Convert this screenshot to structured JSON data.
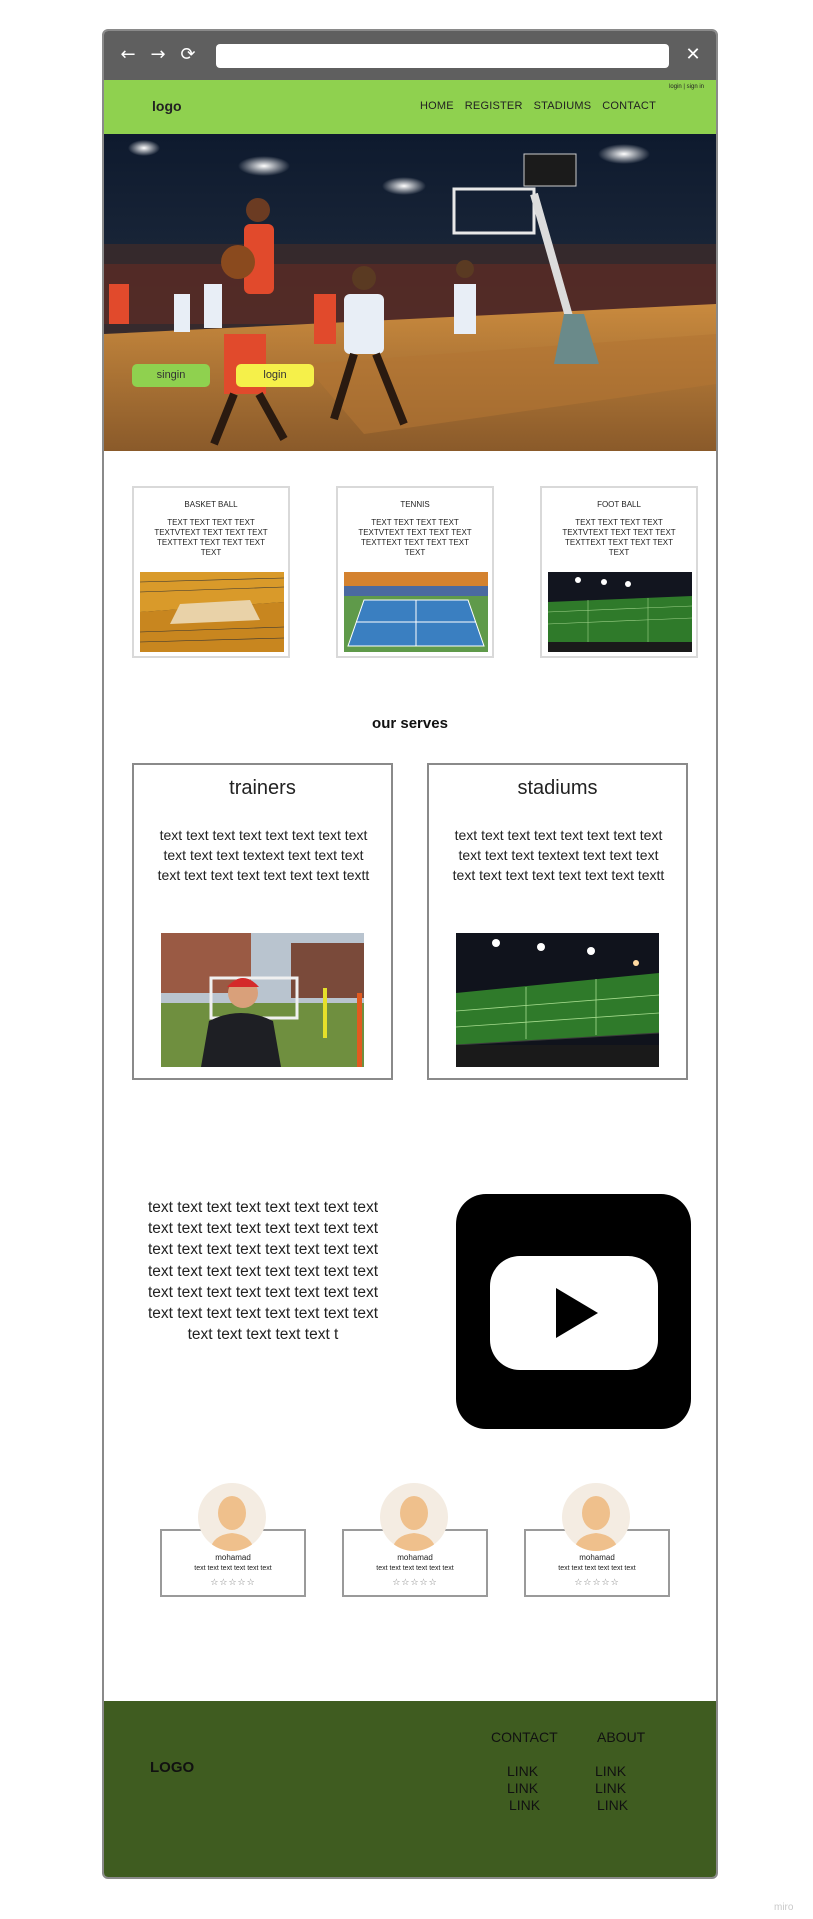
{
  "browser": {
    "back_icon": "arrow-left-icon",
    "forward_icon": "arrow-right-icon",
    "reload_icon": "reload-icon",
    "close_icon": "close-icon"
  },
  "header": {
    "logo": "logo",
    "auth_links": "login | sign in",
    "nav": [
      "HOME",
      "REGISTER",
      "STADIUMS",
      "CONTACT"
    ],
    "bg_color": "#8fd14f"
  },
  "hero": {
    "signup_label": "singin",
    "login_label": "login"
  },
  "sports": [
    {
      "title": "BASKET BALL",
      "text": "TEXT TEXT TEXT TEXT TEXTVTEXT TEXT TEXT TEXT TEXTTEXT TEXT TEXT TEXT TEXT"
    },
    {
      "title": "TENNIS",
      "text": "TEXT TEXT TEXT TEXT TEXTVTEXT TEXT TEXT TEXT TEXTTEXT TEXT TEXT TEXT TEXT"
    },
    {
      "title": "FOOT BALL",
      "text": "TEXT TEXT TEXT TEXT TEXTVTEXT TEXT TEXT TEXT TEXTTEXT TEXT TEXT TEXT TEXT"
    }
  ],
  "serves": {
    "title": "our serves",
    "cards": [
      {
        "title": "trainers",
        "text": "text text text text text text text text text text text textext text text text text text text text text text text textt"
      },
      {
        "title": "stadiums",
        "text": "text text text text text text text text text text text textext text text text text text text text text text text textt"
      }
    ]
  },
  "media": {
    "text": "text text text text text text text text text text text text text text text text text text text text text text text text text text text text text text text text text text text text text text text text text text text text text text text text text text text text text t",
    "video_icon": "youtube-icon"
  },
  "reviews": [
    {
      "name": "mohamad",
      "text": "text text text text text text",
      "stars": "☆☆☆☆☆"
    },
    {
      "name": "mohamad",
      "text": "text text text text text text",
      "stars": "☆☆☆☆☆"
    },
    {
      "name": "mohamad",
      "text": "text text text text text text",
      "stars": "☆☆☆☆☆"
    }
  ],
  "footer": {
    "logo": "LOGO",
    "col1": {
      "heading": "CONTACT",
      "links": [
        "LINK",
        "LINK",
        "LINK"
      ]
    },
    "col2": {
      "heading": "ABOUT",
      "links": [
        "LINK",
        "LINK",
        "LINK"
      ]
    },
    "bg_color": "#3f5c20"
  },
  "watermark": "miro"
}
